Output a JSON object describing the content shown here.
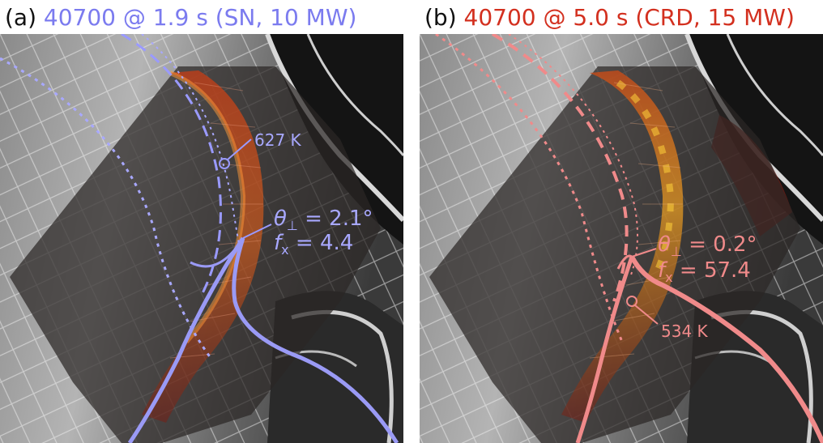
{
  "panels": [
    {
      "id": "a",
      "letter": "(a)",
      "title": "40700 @ 1.9 s (SN, 10 MW)",
      "color": "#7b7bef",
      "temp_label": "627 K",
      "theta_symbol": "θ",
      "theta_sub": "⊥",
      "theta_value": " = 2.1°",
      "fx_symbol": "f",
      "fx_sub": "x",
      "fx_value": " = 4.4"
    },
    {
      "id": "b",
      "letter": "(b)",
      "title": "40700 @ 5.0 s (CRD, 15 MW)",
      "color": "#d3301f",
      "line_color": "#f08a8a",
      "temp_label": "534 K",
      "theta_symbol": "θ",
      "theta_sub": "⊥",
      "theta_value": " = 0.2°",
      "fx_symbol": "f",
      "fx_sub": "x",
      "fx_value": " = 57.4"
    }
  ]
}
